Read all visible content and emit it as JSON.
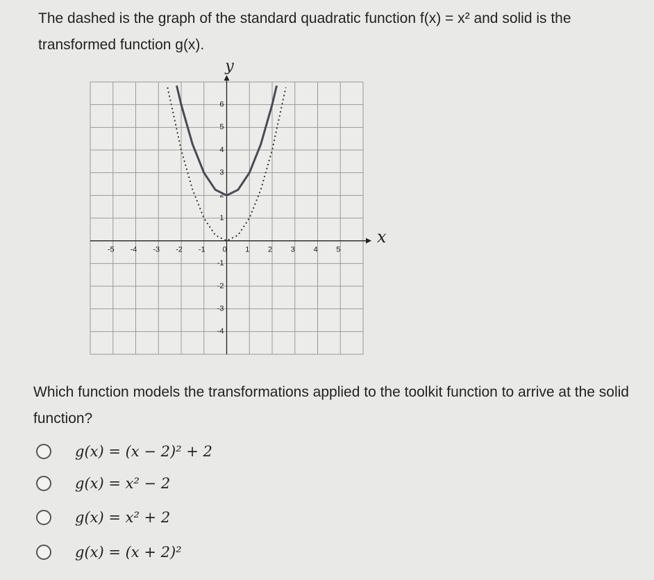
{
  "question": "The dashed is the graph of the standard quadratic function f(x) = x² and solid is the transformed function g(x).",
  "graph": {
    "x_label": "x",
    "y_label": "y",
    "xlim": [
      -6,
      6
    ],
    "ylim": [
      -5,
      7
    ],
    "xticks": [
      -5,
      -4,
      -3,
      -2,
      -1,
      0,
      1,
      2,
      3,
      4,
      5
    ],
    "yticks": [
      -4,
      -3,
      -2,
      -1,
      1,
      2,
      3,
      4,
      5,
      6
    ],
    "grid": true,
    "series": [
      {
        "name": "f(x)",
        "style": "dashed",
        "color": "#333333",
        "x": [
          -2.6,
          -2,
          -1.5,
          -1,
          -0.5,
          0,
          0.5,
          1,
          1.5,
          2,
          2.6
        ],
        "y": [
          6.76,
          4,
          2.25,
          1,
          0.25,
          0,
          0.25,
          1,
          2.25,
          4,
          6.76
        ]
      },
      {
        "name": "g(x)",
        "style": "solid",
        "color": "#4a4a55",
        "x": [
          -2.2,
          -2,
          -1.5,
          -1,
          -0.5,
          0,
          0.5,
          1,
          1.5,
          2,
          2.2
        ],
        "y": [
          6.84,
          6,
          4.25,
          3,
          2.25,
          2,
          2.25,
          3,
          4.25,
          6,
          6.84
        ]
      }
    ]
  },
  "prompt": "Which function models the transformations applied to the toolkit function to arrive at the solid function?",
  "options": [
    "g(x) = (x − 2)² + 2",
    "g(x) = x² − 2",
    "g(x) = x² + 2",
    "g(x) = (x + 2)²"
  ]
}
